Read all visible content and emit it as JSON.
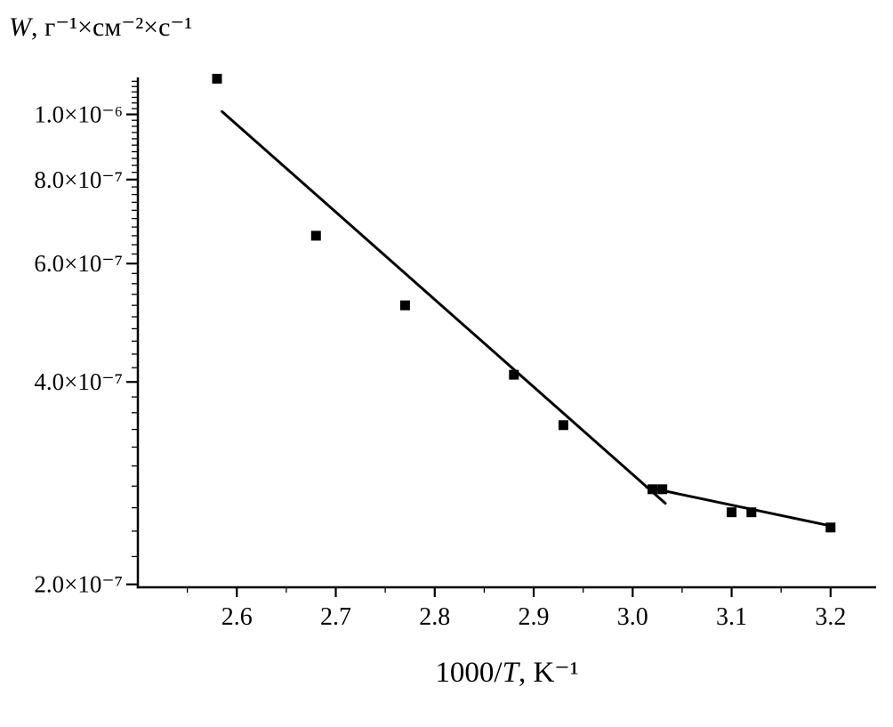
{
  "chart_data": {
    "type": "scatter",
    "title": "",
    "background": "#ffffff",
    "axis_color": "#000000",
    "grid": false,
    "legend": false,
    "x_axis": {
      "label_plain": "1000/T, K⁻¹",
      "label_parts": {
        "prefix": "1000/",
        "italic": "T",
        "suffix": ", K⁻¹"
      },
      "scale": "linear",
      "lim": [
        2.5,
        3.246
      ],
      "major_ticks": [
        2.6,
        2.7,
        2.8,
        2.9,
        3.0,
        3.1,
        3.2
      ],
      "tick_labels": [
        "2.6",
        "2.7",
        "2.8",
        "2.9",
        "3.0",
        "3.1",
        "3.2"
      ],
      "minor_tick_step": 0.05
    },
    "y_axis": {
      "label_plain": "W, г⁻¹×см⁻²×с⁻¹",
      "label_parts": {
        "italic": "W",
        "suffix": ", г⁻¹×см⁻²×с⁻¹"
      },
      "scale": "log",
      "lim": [
        1.98e-07,
        1.135e-06
      ],
      "major_ticks": [
        2e-07,
        4e-07,
        6e-07,
        8e-07,
        1e-06
      ],
      "tick_labels": [
        "2.0×10⁻⁷",
        "4.0×10⁻⁷",
        "6.0×10⁻⁷",
        "8.0×10⁻⁷",
        "1.0×10⁻⁶"
      ],
      "minor_tick_step": 2e-08
    },
    "series": [
      {
        "name": "experimental-points",
        "type": "scatter",
        "marker": "square",
        "color": "#000000",
        "points": [
          [
            2.58,
            1.13e-06
          ],
          [
            2.68,
            6.6e-07
          ],
          [
            2.77,
            5.2e-07
          ],
          [
            2.88,
            4.1e-07
          ],
          [
            2.93,
            3.45e-07
          ],
          [
            3.02,
            2.77e-07
          ],
          [
            3.03,
            2.77e-07
          ],
          [
            3.1,
            2.56e-07
          ],
          [
            3.12,
            2.56e-07
          ],
          [
            3.2,
            2.43e-07
          ]
        ]
      },
      {
        "name": "fit-line-high-temperature",
        "type": "line",
        "color": "#000000",
        "points": [
          [
            2.585,
            1.01e-06
          ],
          [
            3.033,
            2.64e-07
          ]
        ]
      },
      {
        "name": "fit-line-low-temperature",
        "type": "line",
        "color": "#000000",
        "points": [
          [
            3.014,
            2.79e-07
          ],
          [
            3.202,
            2.44e-07
          ]
        ]
      }
    ]
  }
}
